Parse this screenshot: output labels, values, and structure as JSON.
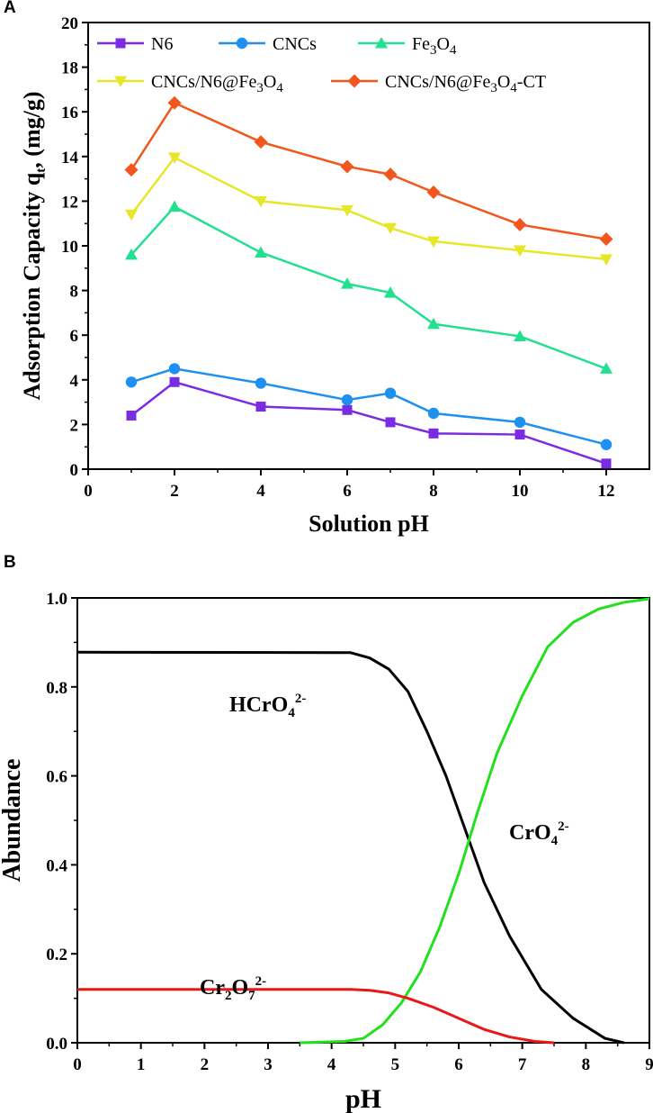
{
  "chart_data": [
    {
      "panel": "A",
      "type": "line",
      "markers": true,
      "title": "",
      "xlabel": "Solution pH",
      "ylabel": "Adsorption Capacity q",
      "ylabel_subscript": "t",
      "ylabel_tail": ", (mg/g)",
      "xlim": [
        0,
        13
      ],
      "ylim": [
        0,
        20
      ],
      "xticks": [
        0,
        2,
        4,
        6,
        8,
        10,
        12
      ],
      "yticks": [
        0,
        2,
        4,
        6,
        8,
        10,
        12,
        14,
        16,
        18,
        20
      ],
      "x": [
        1,
        2,
        4,
        6,
        7,
        8,
        10,
        12
      ],
      "legend_position": "top",
      "series": [
        {
          "name": "N6",
          "legend_parts": [
            {
              "t": "N6",
              "sub": false
            }
          ],
          "color": "#7B2BE2",
          "marker": "square",
          "values": [
            2.4,
            3.9,
            2.8,
            2.65,
            2.1,
            1.6,
            1.55,
            0.25
          ]
        },
        {
          "name": "CNCs",
          "legend_parts": [
            {
              "t": "CNCs",
              "sub": false
            }
          ],
          "color": "#1E90F0",
          "marker": "circle",
          "values": [
            3.9,
            4.5,
            3.85,
            3.1,
            3.4,
            2.5,
            2.1,
            1.1
          ]
        },
        {
          "name": "Fe3O4",
          "legend_parts": [
            {
              "t": "Fe",
              "sub": false
            },
            {
              "t": "3",
              "sub": true
            },
            {
              "t": "O",
              "sub": false
            },
            {
              "t": "4",
              "sub": true
            }
          ],
          "color": "#22E090",
          "marker": "triangle-up",
          "values": [
            9.6,
            11.75,
            9.7,
            8.3,
            7.9,
            6.5,
            5.95,
            4.5
          ]
        },
        {
          "name": "CNCs/N6@Fe3O4",
          "legend_parts": [
            {
              "t": "CNCs/N6@Fe",
              "sub": false
            },
            {
              "t": "3",
              "sub": true
            },
            {
              "t": "O",
              "sub": false
            },
            {
              "t": "4",
              "sub": true
            }
          ],
          "color": "#E6E62A",
          "marker": "triangle-down",
          "values": [
            11.4,
            13.95,
            12.0,
            11.6,
            10.8,
            10.2,
            9.8,
            9.4
          ]
        },
        {
          "name": "CNCs/N6@Fe3O4-CT",
          "legend_parts": [
            {
              "t": "CNCs/N6@Fe",
              "sub": false
            },
            {
              "t": "3",
              "sub": true
            },
            {
              "t": "O",
              "sub": false
            },
            {
              "t": "4",
              "sub": true
            },
            {
              "t": "-CT",
              "sub": false
            }
          ],
          "color": "#F2561D",
          "marker": "diamond",
          "values": [
            13.4,
            16.4,
            14.65,
            13.55,
            13.2,
            12.4,
            10.95,
            10.3
          ]
        }
      ]
    },
    {
      "panel": "B",
      "type": "line",
      "markers": false,
      "title": "",
      "xlabel": "pH",
      "ylabel": "Abundance",
      "xlim": [
        0,
        9
      ],
      "ylim": [
        0,
        1.0
      ],
      "xticks": [
        0,
        1,
        2,
        3,
        4,
        5,
        6,
        7,
        8,
        9
      ],
      "yticks": [
        0.0,
        0.2,
        0.4,
        0.6,
        0.8,
        1.0
      ],
      "series": [
        {
          "name": "HCrO4 2-",
          "color": "#000000",
          "x": [
            0,
            4.3,
            4.6,
            4.9,
            5.2,
            5.5,
            5.8,
            6.1,
            6.4,
            6.8,
            7.3,
            7.8,
            8.3,
            8.6
          ],
          "values": [
            0.878,
            0.877,
            0.865,
            0.84,
            0.79,
            0.7,
            0.6,
            0.48,
            0.36,
            0.24,
            0.12,
            0.055,
            0.01,
            0.0
          ],
          "label_parts": [
            {
              "t": "HCrO",
              "k": "n"
            },
            {
              "t": "4",
              "k": "sub"
            },
            {
              "t": "2-",
              "k": "sup"
            }
          ]
        },
        {
          "name": "CrO4 2-",
          "color": "#22E01C",
          "x": [
            3.5,
            4.2,
            4.5,
            4.8,
            5.1,
            5.4,
            5.7,
            6.0,
            6.3,
            6.6,
            7.0,
            7.4,
            7.8,
            8.2,
            8.6,
            9.0
          ],
          "values": [
            0.0,
            0.003,
            0.01,
            0.04,
            0.09,
            0.16,
            0.26,
            0.38,
            0.52,
            0.65,
            0.78,
            0.89,
            0.945,
            0.975,
            0.99,
            0.998
          ],
          "label_parts": [
            {
              "t": "CrO",
              "k": "n"
            },
            {
              "t": "4",
              "k": "sub"
            },
            {
              "t": "2-",
              "k": "sup"
            }
          ]
        },
        {
          "name": "Cr2O7 2-",
          "color": "#E81818",
          "x": [
            0,
            4.3,
            4.6,
            4.9,
            5.2,
            5.6,
            6.0,
            6.4,
            6.8,
            7.2,
            7.5
          ],
          "values": [
            0.12,
            0.12,
            0.118,
            0.112,
            0.1,
            0.08,
            0.055,
            0.03,
            0.013,
            0.003,
            0.0
          ],
          "label_parts": [
            {
              "t": "Cr",
              "k": "n"
            },
            {
              "t": "2",
              "k": "sub"
            },
            {
              "t": "O",
              "k": "n"
            },
            {
              "t": "7",
              "k": "sub"
            },
            {
              "t": "2-",
              "k": "sup"
            }
          ]
        }
      ]
    }
  ]
}
